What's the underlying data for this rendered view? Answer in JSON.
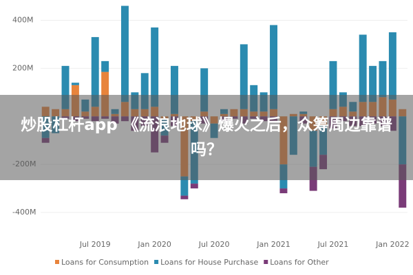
{
  "chart_data": {
    "type": "bar",
    "stacked": true,
    "annotation": "炒股杠杆app 《流浪地球》爆火之后，众筹周边靠谱吗？",
    "categories": [
      null,
      null,
      null,
      null,
      null,
      "Jul 2019",
      null,
      null,
      null,
      null,
      null,
      "Jan 2020",
      null,
      null,
      null,
      null,
      null,
      "Jul 2020",
      null,
      null,
      null,
      null,
      null,
      "Jan 2021",
      null,
      null,
      null,
      null,
      null,
      "Jul 2021",
      null,
      null,
      null,
      null,
      null,
      "Jan 2022",
      null
    ],
    "series": [
      {
        "name": "Loans for Consumption",
        "color": "#e8843c",
        "values": [
          40,
          30,
          30,
          130,
          20,
          40,
          185,
          10,
          60,
          30,
          30,
          40,
          -10,
          10,
          -250,
          -20,
          20,
          -30,
          10,
          30,
          30,
          20,
          20,
          30,
          -200,
          10,
          10,
          -60,
          -40,
          30,
          40,
          20,
          60,
          60,
          80,
          70,
          30
        ]
      },
      {
        "name": "Loans for House Purchase",
        "color": "#2b8bb0",
        "values": [
          -90,
          -70,
          180,
          10,
          50,
          290,
          45,
          20,
          400,
          70,
          150,
          330,
          -70,
          200,
          -80,
          -260,
          180,
          -60,
          20,
          0,
          270,
          110,
          80,
          350,
          -100,
          -160,
          10,
          -150,
          -120,
          200,
          60,
          40,
          280,
          150,
          150,
          280,
          -200
        ]
      },
      {
        "name": "Loans for Other",
        "color": "#7a3b78",
        "values": [
          -20,
          0,
          -10,
          -20,
          -10,
          -20,
          -10,
          -30,
          -20,
          -60,
          -40,
          -150,
          -30,
          -40,
          -15,
          -20,
          -30,
          0,
          -20,
          -10,
          -30,
          -10,
          -20,
          -20,
          -20,
          0,
          -30,
          -100,
          -60,
          -50,
          -20,
          -40,
          -40,
          -30,
          -40,
          -60,
          -180
        ]
      }
    ],
    "ylim": [
      -460,
      470
    ],
    "yticks": [
      {
        "value": 400,
        "label": "400M"
      },
      {
        "value": 200,
        "label": "200M"
      },
      {
        "value": -200,
        "label": "-200M"
      },
      {
        "value": -400,
        "label": "-400M"
      }
    ],
    "grid": true
  }
}
